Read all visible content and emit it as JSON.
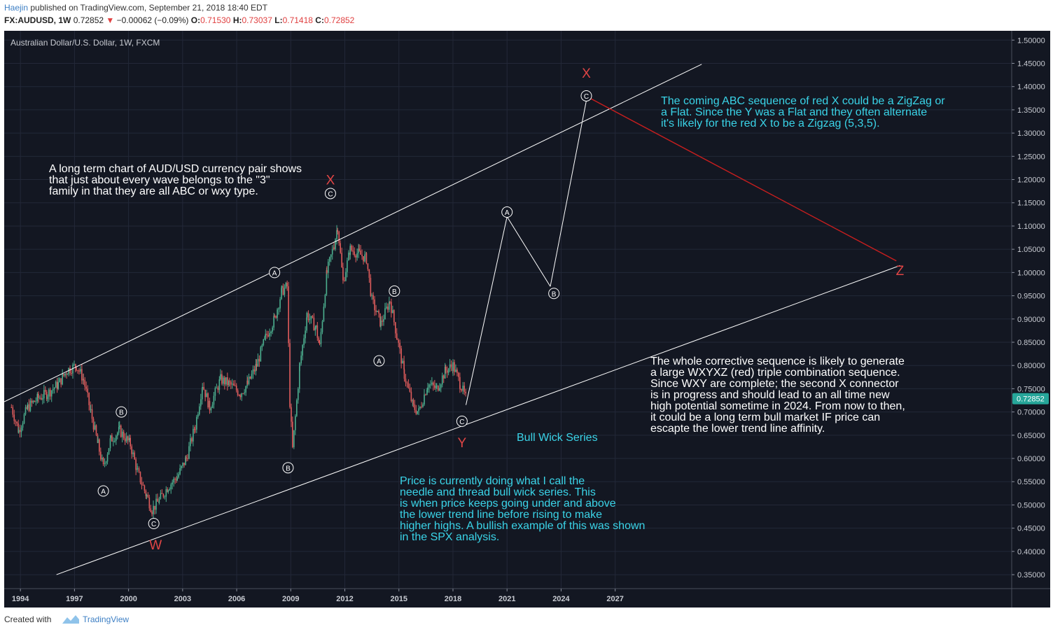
{
  "header": {
    "author": "Haejin",
    "published_text": "published on TradingView.com, September 21, 2018 18:40 EDT",
    "symbol": "FX:AUDUSD, 1W",
    "last": "0.72852",
    "change_arrow": "▼",
    "change": "−0.00062 (−0.09%)",
    "o_label": "O:",
    "o": "0.71530",
    "h_label": "H:",
    "h": "0.73037",
    "l_label": "L:",
    "l": "0.71418",
    "c_label": "C:",
    "c": "0.72852"
  },
  "footer": {
    "created_with": "Created with",
    "brand": "TradingView"
  },
  "colors": {
    "background": "#131722",
    "up_candle": "#4caf8f",
    "down_candle": "#e05c5c",
    "trend_line": "#ffffff",
    "wave_red": "#e04545",
    "annotation_cyan": "#3ad4e8",
    "price_label_bg": "#26a69a"
  },
  "chart_data": {
    "type": "candlestick",
    "title": "Australian Dollar/U.S. Dollar, 1W, FXCM",
    "xlabel": "",
    "ylabel": "",
    "last_price_label": "0.72852",
    "x_tick_labels": [
      "1994",
      "1997",
      "2000",
      "2003",
      "2006",
      "2009",
      "2012",
      "2015",
      "2018",
      "2021",
      "2024",
      "2027"
    ],
    "y_tick_labels": [
      "1.50000",
      "1.45000",
      "1.40000",
      "1.35000",
      "1.30000",
      "1.25000",
      "1.20000",
      "1.15000",
      "1.10000",
      "1.05000",
      "1.00000",
      "0.95000",
      "0.90000",
      "0.85000",
      "0.80000",
      "0.75000",
      "0.70000",
      "0.65000",
      "0.60000",
      "0.55000",
      "0.50000",
      "0.45000",
      "0.40000",
      "0.35000"
    ],
    "xlim": [
      1993.1,
      2049.0
    ],
    "ylim": [
      0.32,
      1.52
    ],
    "grid": true,
    "price_path": [
      [
        1993.5,
        0.71
      ],
      [
        1993.9,
        0.66
      ],
      [
        1994.4,
        0.71
      ],
      [
        1995.0,
        0.73
      ],
      [
        1995.5,
        0.74
      ],
      [
        1996.1,
        0.76
      ],
      [
        1996.6,
        0.79
      ],
      [
        1997.1,
        0.8
      ],
      [
        1997.5,
        0.77
      ],
      [
        1997.9,
        0.7
      ],
      [
        1998.3,
        0.63
      ],
      [
        1998.6,
        0.58
      ],
      [
        1999.0,
        0.64
      ],
      [
        1999.5,
        0.66
      ],
      [
        2000.1,
        0.63
      ],
      [
        2000.5,
        0.57
      ],
      [
        2001.0,
        0.52
      ],
      [
        2001.3,
        0.49
      ],
      [
        2001.7,
        0.51
      ],
      [
        2002.2,
        0.54
      ],
      [
        2002.7,
        0.56
      ],
      [
        2003.2,
        0.6
      ],
      [
        2003.7,
        0.67
      ],
      [
        2004.1,
        0.76
      ],
      [
        2004.5,
        0.71
      ],
      [
        2005.1,
        0.77
      ],
      [
        2005.6,
        0.76
      ],
      [
        2006.2,
        0.74
      ],
      [
        2006.6,
        0.76
      ],
      [
        2007.1,
        0.8
      ],
      [
        2007.6,
        0.86
      ],
      [
        2008.1,
        0.9
      ],
      [
        2008.5,
        0.96
      ],
      [
        2008.8,
        0.97
      ],
      [
        2008.95,
        0.72
      ],
      [
        2009.1,
        0.62
      ],
      [
        2009.5,
        0.8
      ],
      [
        2009.9,
        0.91
      ],
      [
        2010.4,
        0.88
      ],
      [
        2010.6,
        0.84
      ],
      [
        2011.0,
        1.0
      ],
      [
        2011.4,
        1.06
      ],
      [
        2011.6,
        1.1
      ],
      [
        2011.9,
        0.98
      ],
      [
        2012.3,
        1.05
      ],
      [
        2012.8,
        1.04
      ],
      [
        2013.2,
        1.03
      ],
      [
        2013.5,
        0.94
      ],
      [
        2014.0,
        0.89
      ],
      [
        2014.5,
        0.94
      ],
      [
        2014.9,
        0.86
      ],
      [
        2015.3,
        0.78
      ],
      [
        2015.8,
        0.71
      ],
      [
        2016.1,
        0.7
      ],
      [
        2016.6,
        0.76
      ],
      [
        2017.1,
        0.75
      ],
      [
        2017.6,
        0.79
      ],
      [
        2018.0,
        0.8
      ],
      [
        2018.4,
        0.76
      ],
      [
        2018.72,
        0.72852
      ]
    ],
    "trend_lines": [
      {
        "name": "upper",
        "from": [
          1993.1,
          0.722
        ],
        "to": [
          2031.8,
          1.448
        ]
      },
      {
        "name": "lower",
        "from": [
          1996.0,
          0.35
        ],
        "to": [
          2042.8,
          1.015
        ]
      }
    ],
    "projection": [
      [
        2018.72,
        0.715
      ],
      [
        2021.0,
        1.12
      ],
      [
        2023.4,
        0.97
      ],
      [
        2025.4,
        1.37
      ]
    ],
    "red_projection": [
      [
        2025.6,
        1.375
      ],
      [
        2042.6,
        1.025
      ]
    ],
    "wave_labels": [
      {
        "text": "A",
        "x": 1998.6,
        "y": 0.53,
        "style": "circle"
      },
      {
        "text": "B",
        "x": 1999.6,
        "y": 0.7,
        "style": "circle"
      },
      {
        "text": "C",
        "x": 2001.4,
        "y": 0.46,
        "style": "circle"
      },
      {
        "text": "W",
        "x": 2001.5,
        "y": 0.415,
        "style": "red"
      },
      {
        "text": "A",
        "x": 2008.1,
        "y": 1.0,
        "style": "circle"
      },
      {
        "text": "B",
        "x": 2008.85,
        "y": 0.58,
        "style": "circle"
      },
      {
        "text": "C",
        "x": 2011.2,
        "y": 1.17,
        "style": "circle"
      },
      {
        "text": "X",
        "x": 2011.2,
        "y": 1.2,
        "style": "red"
      },
      {
        "text": "A",
        "x": 2013.9,
        "y": 0.81,
        "style": "circle"
      },
      {
        "text": "B",
        "x": 2014.75,
        "y": 0.96,
        "style": "circle"
      },
      {
        "text": "C",
        "x": 2018.5,
        "y": 0.68,
        "style": "circle"
      },
      {
        "text": "Y",
        "x": 2018.5,
        "y": 0.635,
        "style": "red"
      },
      {
        "text": "A",
        "x": 2021.0,
        "y": 1.13,
        "style": "circle"
      },
      {
        "text": "B",
        "x": 2023.6,
        "y": 0.955,
        "style": "circle"
      },
      {
        "text": "C",
        "x": 2025.4,
        "y": 1.38,
        "style": "circle"
      },
      {
        "text": "X",
        "x": 2025.4,
        "y": 1.43,
        "style": "red"
      },
      {
        "text": "Z",
        "x": 2042.8,
        "y": 1.005,
        "style": "red"
      }
    ],
    "annotations": [
      {
        "lines": [
          "A long term chart of AUD/USD currency pair shows",
          "that just about every wave belongs to the \"3\"",
          "family in that they are all ABC or wxy type."
        ],
        "color": "white"
      },
      {
        "lines": [
          "The coming ABC sequence of red X could be a ZigZag or",
          "a Flat. Since the Y was a Flat and they often alternate",
          "it's likely for the red X to be a Zigzag (5,3,5)."
        ],
        "color": "cyan"
      },
      {
        "lines": [
          "Bull Wick Series"
        ],
        "color": "cyan"
      },
      {
        "lines": [
          "Price is currently doing what I call the",
          "needle and thread bull wick series. This",
          "is when price keeps going under and above",
          "the lower trend line before rising to make",
          "higher highs. A bullish example of this was shown",
          "in the SPX analysis."
        ],
        "color": "cyan"
      },
      {
        "lines": [
          "The whole corrective sequence is likely to generate",
          "a large WXYXZ (red) triple combination sequence.",
          "Since WXY are complete; the second X connector",
          "is in progress and should lead to an all time new",
          "high potential sometime in 2024. From now to then,",
          "it could be a long term bull market IF price can",
          "escapte the lower trend line affinity."
        ],
        "color": "white"
      }
    ]
  }
}
